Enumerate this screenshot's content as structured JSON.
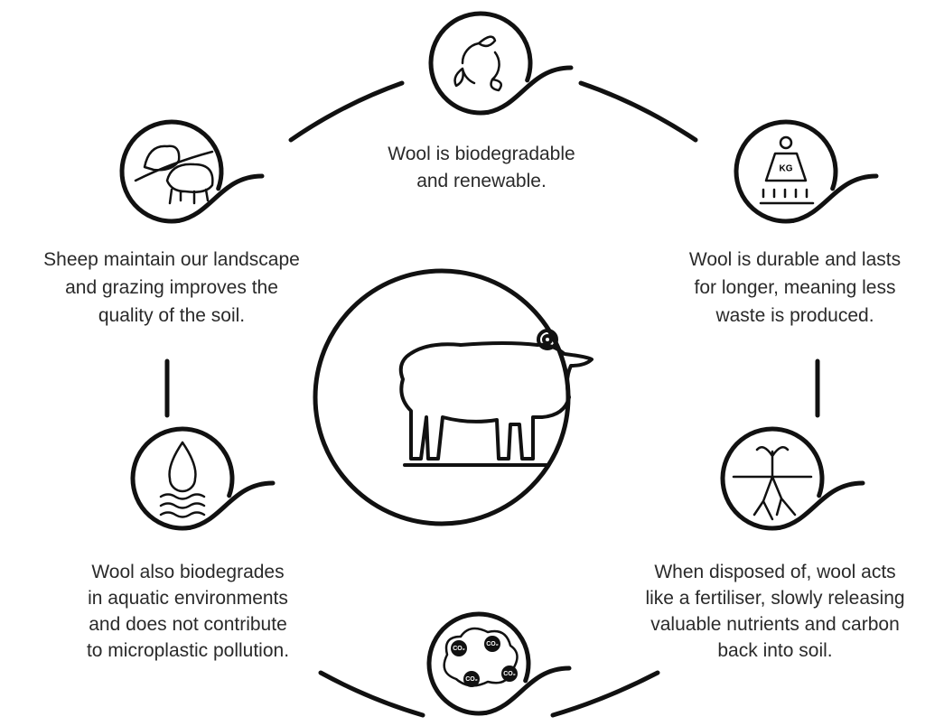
{
  "nodes": [
    {
      "lines": [
        "Wool is biodegradable",
        "and renewable."
      ]
    },
    {
      "lines": [
        "Sheep maintain our landscape",
        "and grazing improves the",
        "quality of the soil."
      ]
    },
    {
      "lines": [
        "Wool is durable and lasts",
        "for longer, meaning less",
        "waste is produced."
      ],
      "icon_label": "KG"
    },
    {
      "lines": [
        "Wool also biodegrades",
        "in aquatic environments",
        "and does not contribute",
        "to microplastic pollution."
      ]
    },
    {
      "lines": [
        "When disposed of, wool acts",
        "like a fertiliser, slowly releasing",
        "valuable nutrients and carbon",
        "back into soil."
      ]
    },
    {
      "icon_label": "CO₂"
    }
  ]
}
